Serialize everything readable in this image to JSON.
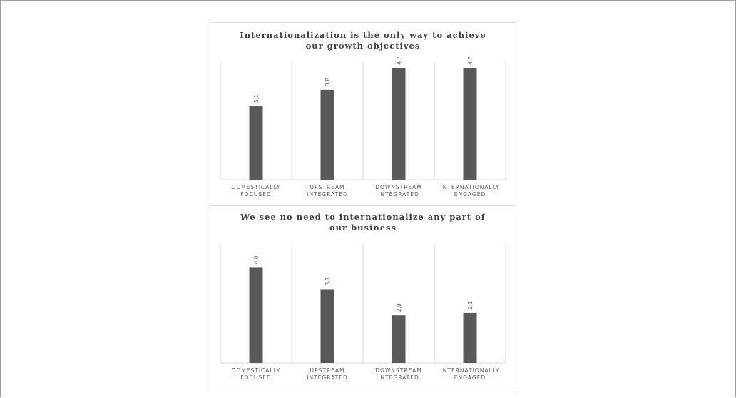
{
  "chart_data": [
    {
      "type": "bar",
      "title_lines": [
        "Internationalization is the only way to achieve",
        "our growth objectives"
      ],
      "categories": [
        [
          "DOMESTICALLY",
          "FOCUSED"
        ],
        [
          "UPSTREAM",
          "INTEGRATED"
        ],
        [
          "DOWNSTREAM",
          "INTEGRATED"
        ],
        [
          "INTERNATIONALLY",
          "ENGAGED"
        ]
      ],
      "values": [
        3.1,
        3.8,
        4.7,
        4.7
      ],
      "value_labels": [
        "3,1",
        "3,8",
        "4,7",
        "4,7"
      ],
      "ylim": [
        0,
        5
      ],
      "bar_color": "#595959",
      "grid": "vertical separators"
    },
    {
      "type": "bar",
      "title_lines": [
        "We see no need to internationalize any part of",
        "our business"
      ],
      "categories": [
        [
          "DOMESTICALLY",
          "FOCUSED"
        ],
        [
          "UPSTREAM",
          "INTEGRATED"
        ],
        [
          "DOWNSTREAM",
          "INTEGRATED"
        ],
        [
          "INTERNATIONALLY",
          "ENGAGED"
        ]
      ],
      "values": [
        4.0,
        3.1,
        2.0,
        2.1
      ],
      "value_labels": [
        "4,0",
        "3,1",
        "2,0",
        "2,1"
      ],
      "ylim": [
        0,
        5
      ],
      "bar_color": "#595959",
      "grid": "vertical separators"
    }
  ]
}
